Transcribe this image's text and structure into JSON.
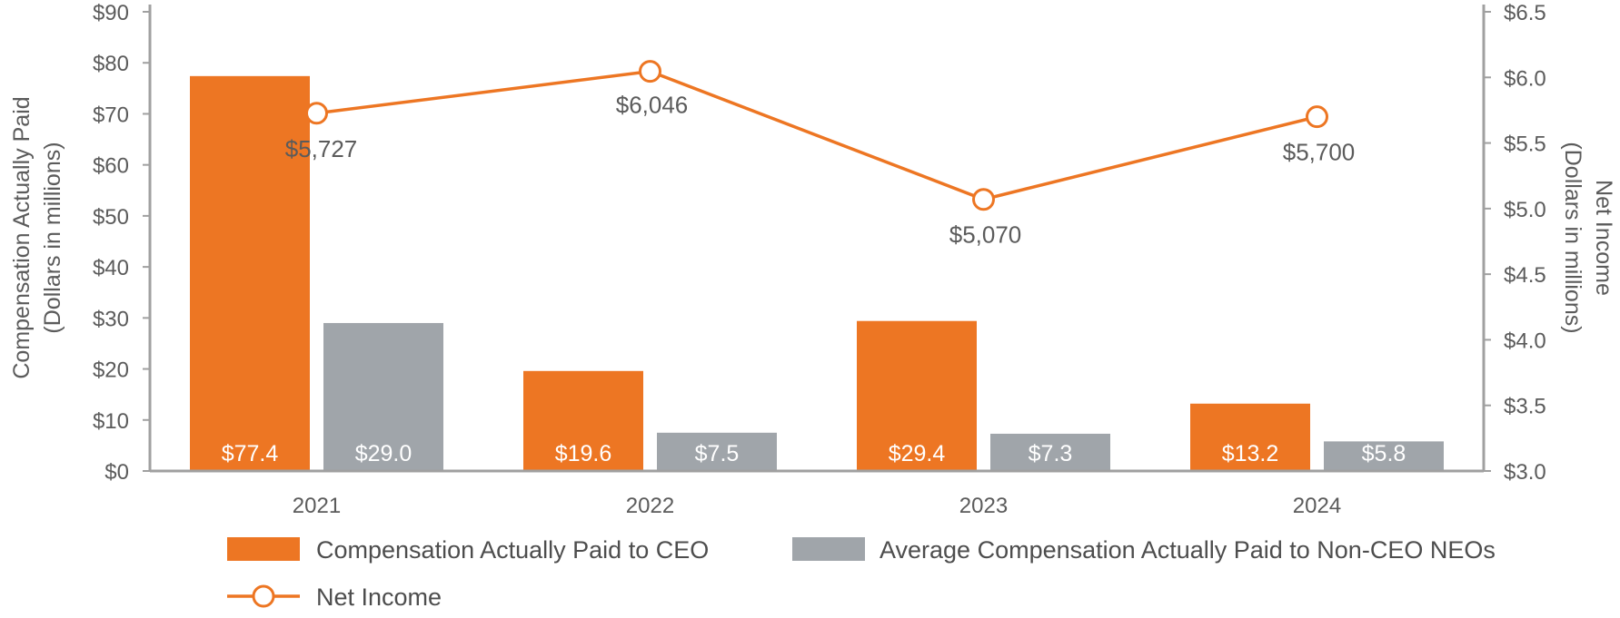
{
  "chart_data": {
    "type": "bar",
    "categories": [
      "2021",
      "2022",
      "2023",
      "2024"
    ],
    "series": [
      {
        "name": "Compensation Actually Paid to CEO",
        "kind": "bar",
        "axis": "left",
        "color": "#ED7623",
        "values": [
          77.4,
          19.6,
          29.4,
          13.2
        ],
        "labels": [
          "$77.4",
          "$19.6",
          "$29.4",
          "$13.2"
        ]
      },
      {
        "name": "Average Compensation Actually Paid to Non-CEO NEOs",
        "kind": "bar",
        "axis": "left",
        "color": "#A0A5AA",
        "values": [
          29.0,
          7.5,
          7.3,
          5.8
        ],
        "labels": [
          "$29.0",
          "$7.5",
          "$7.3",
          "$5.8"
        ]
      },
      {
        "name": "Net Income",
        "kind": "line",
        "axis": "right",
        "color": "#ED7623",
        "values": [
          5.727,
          6.046,
          5.07,
          5.7
        ],
        "labels": [
          "$5,727",
          "$6,046",
          "$5,070",
          "$5,700"
        ]
      }
    ],
    "left_axis": {
      "title_line1": "Compensation Actually Paid",
      "title_line2": "(Dollars in millions)",
      "ylim": [
        0,
        90
      ],
      "ticks": [
        0,
        10,
        20,
        30,
        40,
        50,
        60,
        70,
        80,
        90
      ],
      "tick_labels": [
        "$0",
        "$10",
        "$20",
        "$30",
        "$40",
        "$50",
        "$60",
        "$70",
        "$80",
        "$90"
      ]
    },
    "right_axis": {
      "title_line1": "Net Income",
      "title_line2": "(Dollars in millions)",
      "ylim": [
        3.0,
        6.5
      ],
      "ticks": [
        3.0,
        3.5,
        4.0,
        4.5,
        5.0,
        5.5,
        6.0,
        6.5
      ],
      "tick_labels": [
        "$3.0",
        "$3.5",
        "$4.0",
        "$4.5",
        "$5.0",
        "$5.5",
        "$6.0",
        "$6.5"
      ]
    },
    "grid": false,
    "legend_position": "bottom"
  },
  "colors": {
    "axis": "#A0A0A0",
    "text": "#5b5b5b"
  }
}
